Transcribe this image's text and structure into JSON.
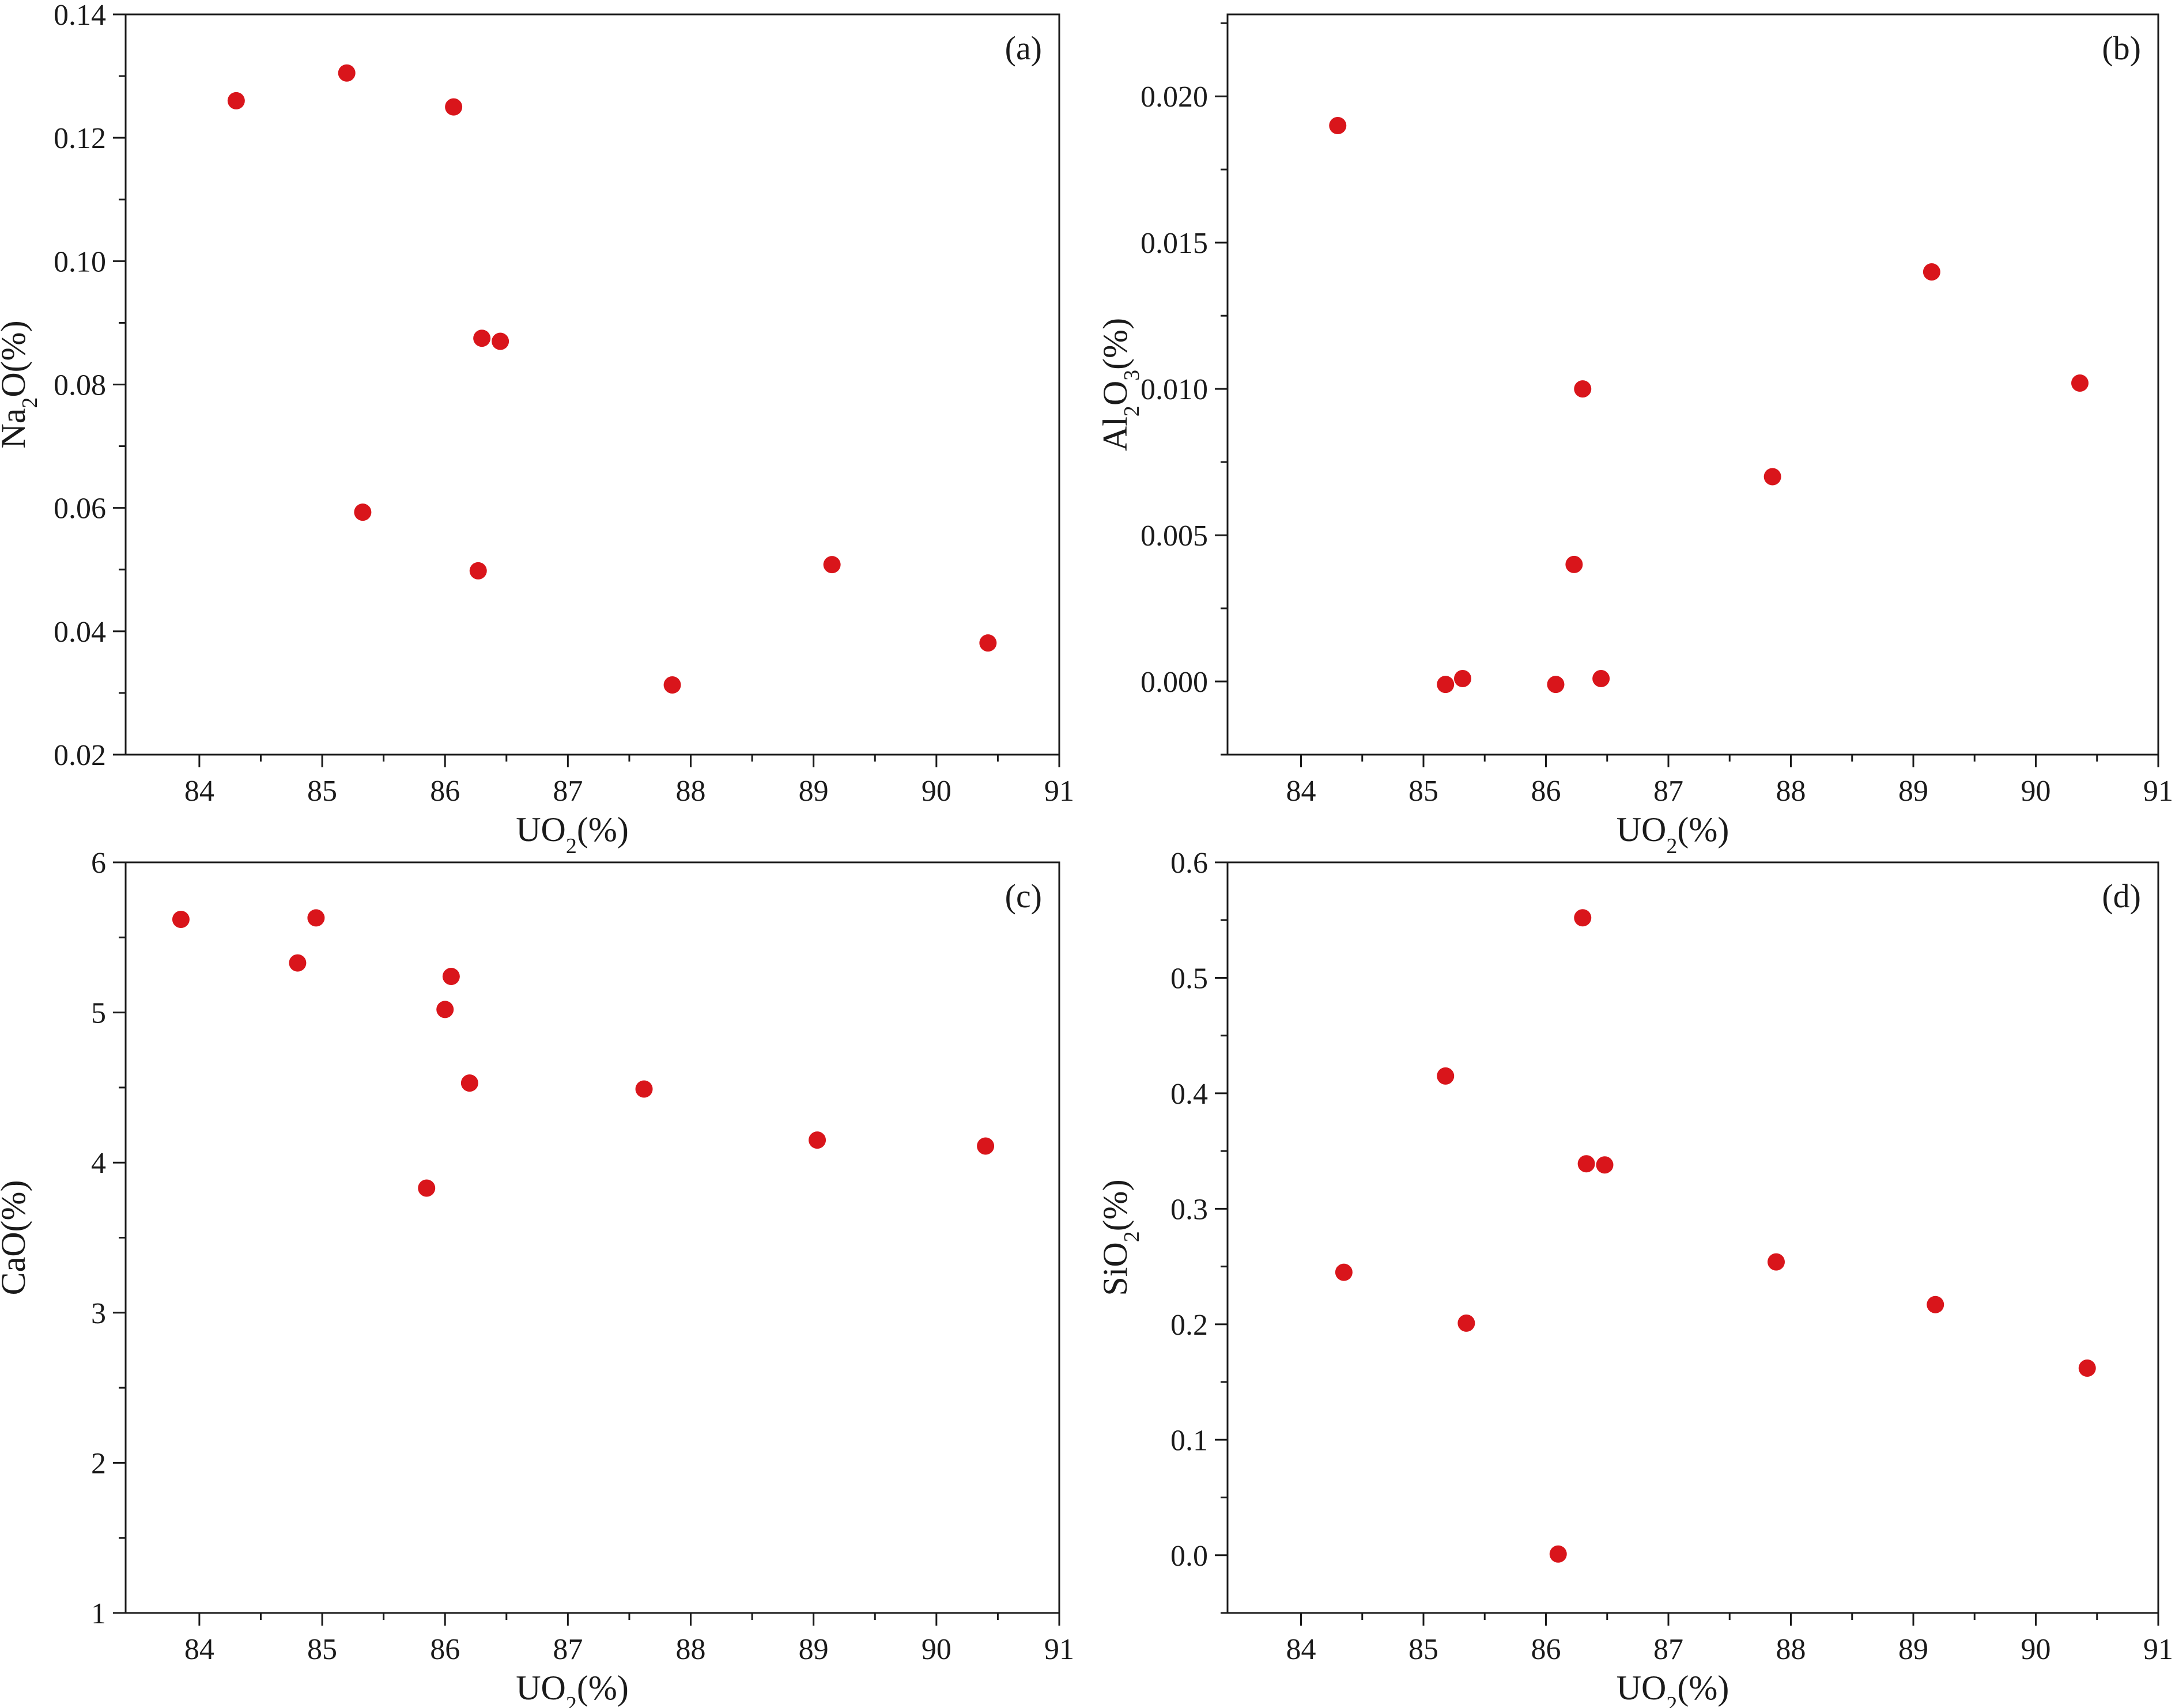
{
  "chart_data": [
    {
      "type": "scatter",
      "panel_label": "(a)",
      "xlabel": "UO₂(%)",
      "ylabel": "Na₂O(%)",
      "xlim": [
        83.4,
        91
      ],
      "ylim": [
        0.02,
        0.14
      ],
      "xticks": [
        "84",
        "85",
        "86",
        "87",
        "88",
        "89",
        "90",
        "91"
      ],
      "yticks": [
        "0.02",
        "0.04",
        "0.06",
        "0.08",
        "0.10",
        "0.12",
        "0.14"
      ],
      "point_color": "#d9151b",
      "points": [
        {
          "x": 84.3,
          "y": 0.126
        },
        {
          "x": 85.2,
          "y": 0.1305
        },
        {
          "x": 86.07,
          "y": 0.125
        },
        {
          "x": 86.3,
          "y": 0.0875
        },
        {
          "x": 86.45,
          "y": 0.087
        },
        {
          "x": 85.33,
          "y": 0.0593
        },
        {
          "x": 86.27,
          "y": 0.0498
        },
        {
          "x": 89.15,
          "y": 0.0508
        },
        {
          "x": 87.85,
          "y": 0.0313
        },
        {
          "x": 90.42,
          "y": 0.0381
        }
      ]
    },
    {
      "type": "scatter",
      "panel_label": "(b)",
      "xlabel": "UO₂(%)",
      "ylabel": "Al₂O₃(%)",
      "xlim": [
        83.4,
        91
      ],
      "ylim": [
        -0.0025,
        0.0228
      ],
      "xticks": [
        "84",
        "85",
        "86",
        "87",
        "88",
        "89",
        "90",
        "91"
      ],
      "yticks": [
        "0.000",
        "0.005",
        "0.010",
        "0.015",
        "0.020"
      ],
      "point_color": "#d9151b",
      "points": [
        {
          "x": 84.3,
          "y": 0.019
        },
        {
          "x": 89.15,
          "y": 0.014
        },
        {
          "x": 90.36,
          "y": 0.0102
        },
        {
          "x": 86.3,
          "y": 0.01
        },
        {
          "x": 87.85,
          "y": 0.007
        },
        {
          "x": 86.23,
          "y": 0.004
        },
        {
          "x": 85.18,
          "y": -0.0001
        },
        {
          "x": 85.32,
          "y": 0.0001
        },
        {
          "x": 86.08,
          "y": -0.0001
        },
        {
          "x": 86.45,
          "y": 0.0001
        }
      ]
    },
    {
      "type": "scatter",
      "panel_label": "(c)",
      "xlabel": "UO₂(%)",
      "ylabel": "CaO(%)",
      "xlim": [
        83.4,
        91
      ],
      "ylim": [
        1,
        6
      ],
      "xticks": [
        "84",
        "85",
        "86",
        "87",
        "88",
        "89",
        "90",
        "91"
      ],
      "yticks": [
        "1",
        "2",
        "3",
        "4",
        "5",
        "6"
      ],
      "point_color": "#d9151b",
      "points": [
        {
          "x": 83.85,
          "y": 5.62
        },
        {
          "x": 84.95,
          "y": 5.63
        },
        {
          "x": 84.8,
          "y": 5.33
        },
        {
          "x": 86.05,
          "y": 5.24
        },
        {
          "x": 86.0,
          "y": 5.02
        },
        {
          "x": 86.2,
          "y": 4.53
        },
        {
          "x": 87.62,
          "y": 4.49
        },
        {
          "x": 85.85,
          "y": 3.83
        },
        {
          "x": 89.03,
          "y": 4.15
        },
        {
          "x": 90.4,
          "y": 4.11
        }
      ]
    },
    {
      "type": "scatter",
      "panel_label": "(d)",
      "xlabel": "UO₂(%)",
      "ylabel": "SiO₂(%)",
      "xlim": [
        83.4,
        91
      ],
      "ylim": [
        -0.05,
        0.6
      ],
      "xticks": [
        "84",
        "85",
        "86",
        "87",
        "88",
        "89",
        "90",
        "91"
      ],
      "yticks": [
        "0.0",
        "0.1",
        "0.2",
        "0.3",
        "0.4",
        "0.5",
        "0.6"
      ],
      "point_color": "#d9151b",
      "points": [
        {
          "x": 86.3,
          "y": 0.552
        },
        {
          "x": 85.18,
          "y": 0.415
        },
        {
          "x": 86.33,
          "y": 0.339
        },
        {
          "x": 86.48,
          "y": 0.338
        },
        {
          "x": 84.35,
          "y": 0.245
        },
        {
          "x": 87.88,
          "y": 0.254
        },
        {
          "x": 85.35,
          "y": 0.201
        },
        {
          "x": 89.18,
          "y": 0.217
        },
        {
          "x": 90.42,
          "y": 0.162
        },
        {
          "x": 86.1,
          "y": 0.001
        }
      ]
    }
  ]
}
